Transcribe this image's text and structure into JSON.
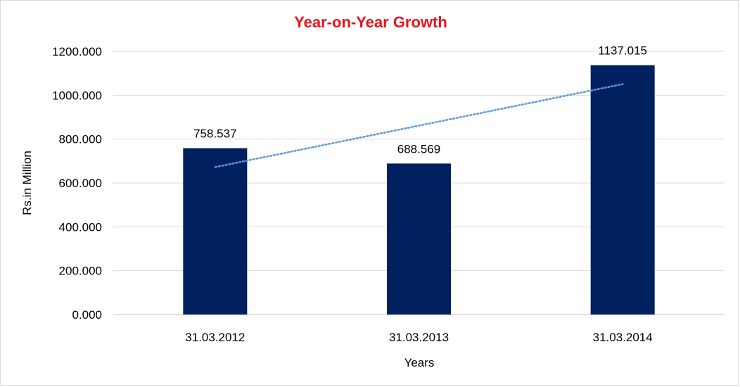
{
  "chart_data": {
    "type": "bar",
    "title": "Year-on-Year Growth",
    "xlabel": "Years",
    "ylabel": "Rs.in Million",
    "categories": [
      "31.03.2012",
      "31.03.2013",
      "31.03.2014"
    ],
    "values": [
      758.537,
      688.569,
      1137.015
    ],
    "data_labels": [
      "758.537",
      "688.569",
      "1137.015"
    ],
    "ylim": [
      0,
      1200
    ],
    "yticks": [
      0,
      200,
      400,
      600,
      800,
      1000,
      1200
    ],
    "ytick_labels": [
      "0.000",
      "200.000",
      "400.000",
      "600.000",
      "800.000",
      "1000.000",
      "1200.000"
    ],
    "trendline": {
      "type": "linear",
      "style": "dotted",
      "color": "#5b9bd5"
    },
    "bar_color": "#002060",
    "title_color": "#e8141b",
    "grid": true,
    "legend": "none"
  }
}
